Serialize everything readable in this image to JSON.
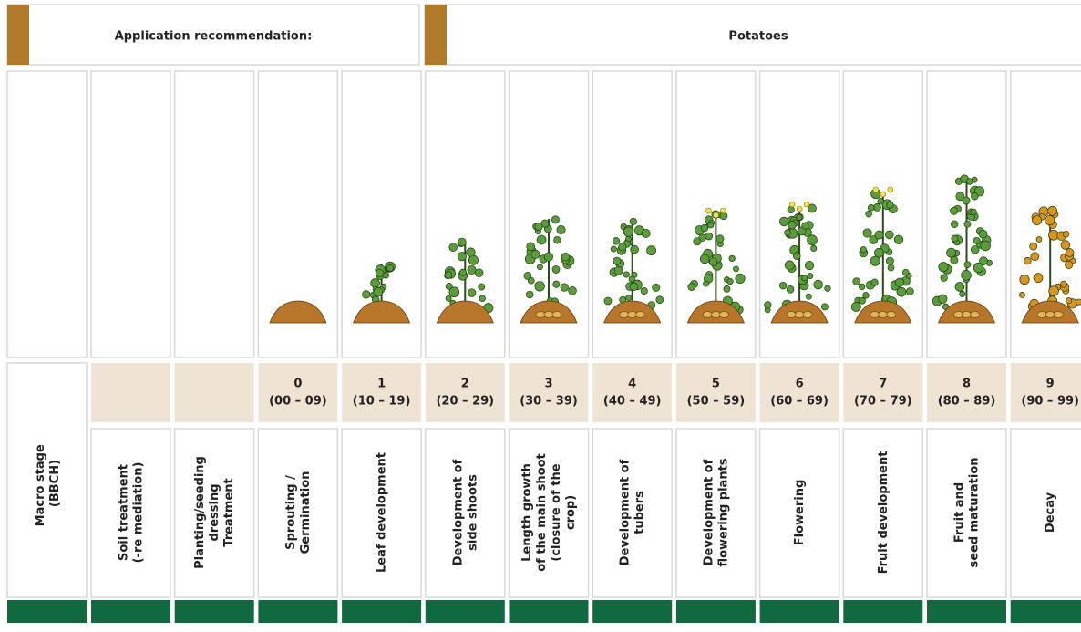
{
  "header": {
    "left_title": "Application recommendation:",
    "right_title": "Potatoes"
  },
  "macro_stage_label": [
    "Macro stage",
    "(BBCH)"
  ],
  "columns": [
    {
      "label": [
        "Soil treatment",
        "(-re mediation)"
      ]
    },
    {
      "label": [
        "Planting/seeding",
        "dressing",
        "Treatment"
      ]
    },
    {
      "stage": "0",
      "range": "(00 – 09)",
      "label": [
        "Sprouting /",
        "Germination"
      ]
    },
    {
      "stage": "1",
      "range": "(10 – 19)",
      "label": [
        "Leaf development"
      ]
    },
    {
      "stage": "2",
      "range": "(20 – 29)",
      "label": [
        "Development of",
        "side shoots"
      ]
    },
    {
      "stage": "3",
      "range": "(30 – 39)",
      "label": [
        "Length growth",
        "of the main shoot",
        "(closure of the",
        "crop)"
      ]
    },
    {
      "stage": "4",
      "range": "(40 – 49)",
      "label": [
        "Development of",
        "tubers"
      ]
    },
    {
      "stage": "5",
      "range": "(50 – 59)",
      "label": [
        "Development of",
        "flowering plants"
      ]
    },
    {
      "stage": "6",
      "range": "(60 – 69)",
      "label": [
        "Flowering"
      ]
    },
    {
      "stage": "7",
      "range": "(70 – 79)",
      "label": [
        "Fruit development"
      ]
    },
    {
      "stage": "8",
      "range": "(80 – 89)",
      "label": [
        "Fruit and",
        "seed maturation"
      ]
    },
    {
      "stage": "9",
      "range": "(90 – 99)",
      "label": [
        "Decay"
      ]
    }
  ]
}
